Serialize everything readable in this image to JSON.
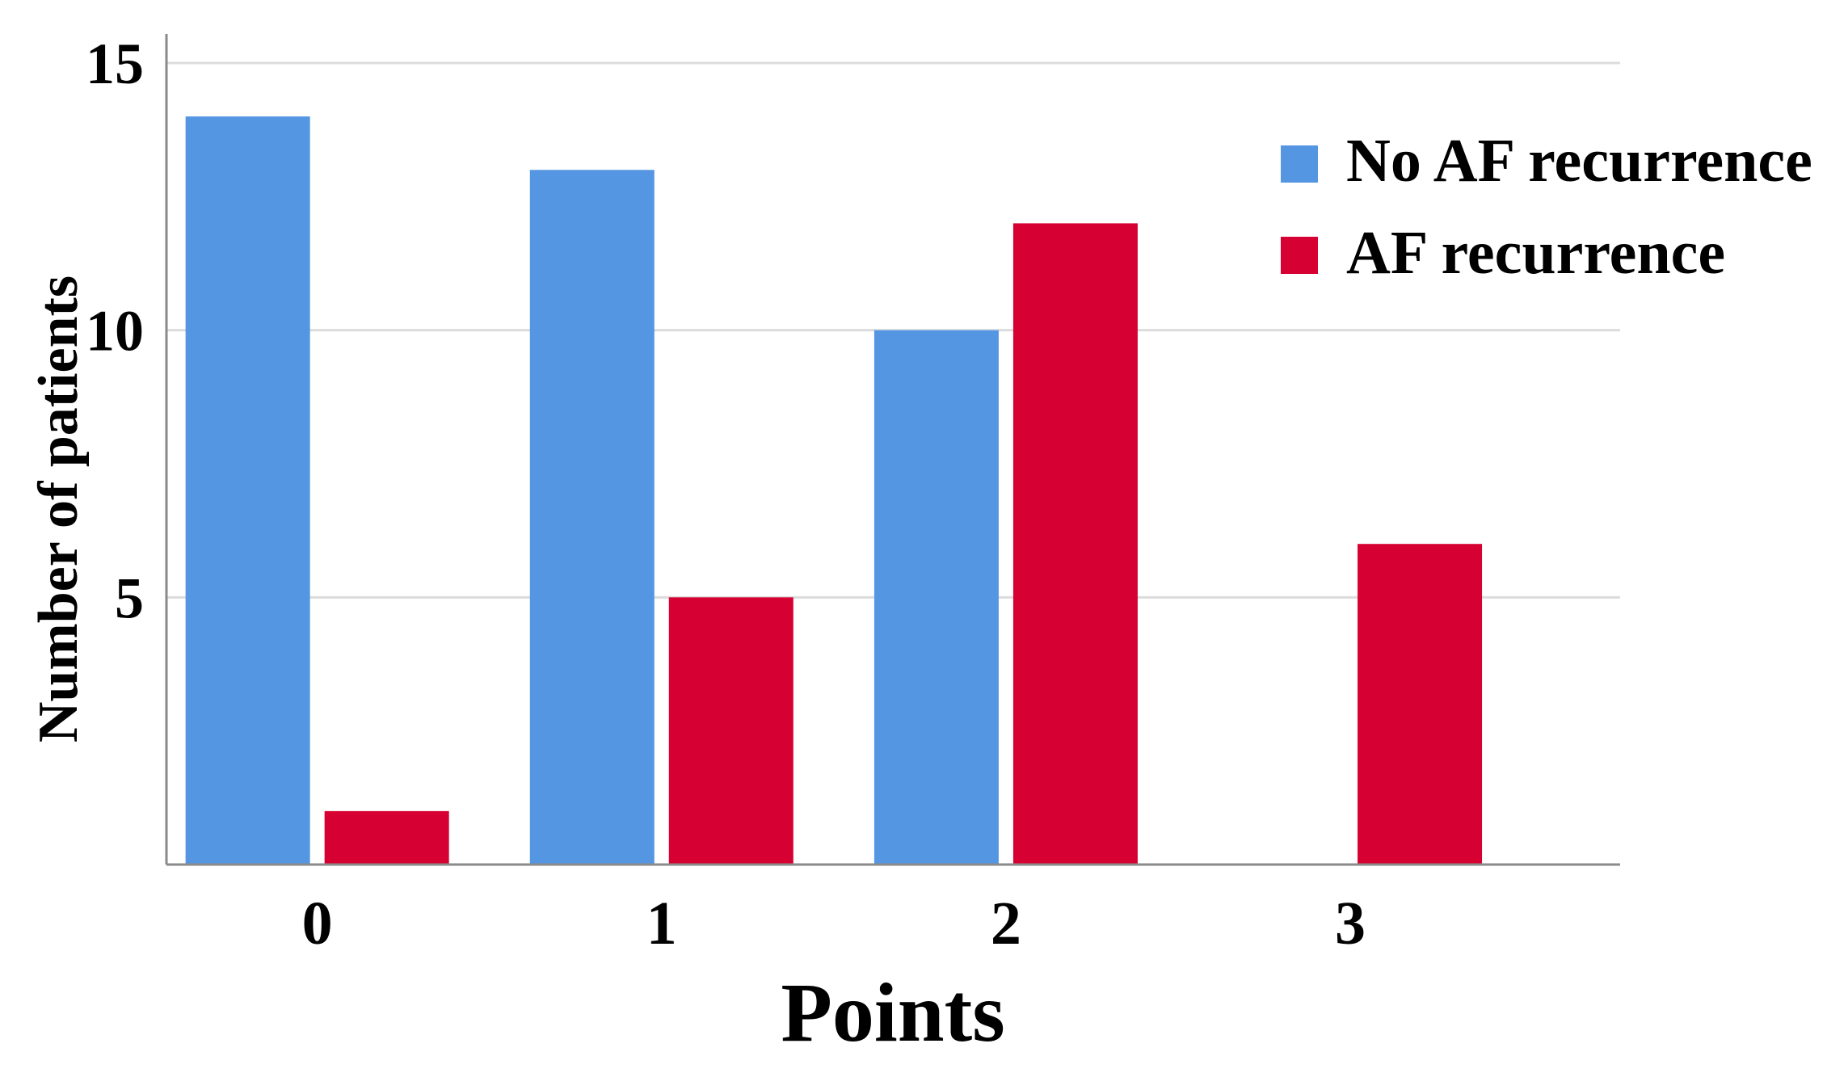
{
  "chart_data": {
    "type": "bar",
    "title": "",
    "xlabel": "Points",
    "ylabel": "Number of patients",
    "categories": [
      "0",
      "1",
      "2",
      "3"
    ],
    "series": [
      {
        "name": "No AF recurrence",
        "color": "#5596e3",
        "values": [
          14,
          13,
          10,
          0
        ]
      },
      {
        "name": "AF recurrence",
        "color": "#d60032",
        "values": [
          1,
          5,
          12,
          6
        ]
      }
    ],
    "ylim": [
      0,
      15
    ],
    "yticks": [
      "5",
      "10",
      "15"
    ],
    "grid": true,
    "legend_position": "top-right"
  }
}
